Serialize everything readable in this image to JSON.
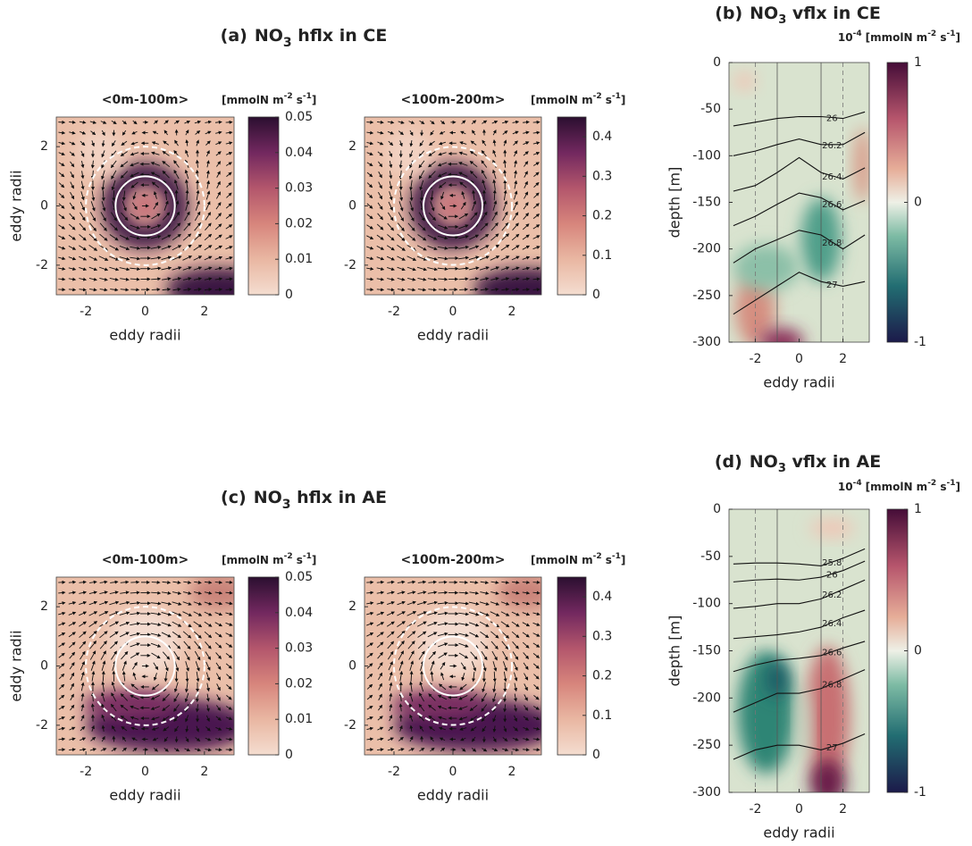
{
  "headings": [
    {
      "label": "(a)",
      "title": [
        "NO",
        "3",
        " hflx  in CE"
      ]
    },
    {
      "label": "(c)",
      "title": [
        "NO",
        "3",
        " hflx  in AE"
      ]
    }
  ],
  "chart_data": [
    {
      "type": "quiver-map",
      "subtitle": "<0m-100m>",
      "xlabel": "eddy radii",
      "ylabel": "eddy radii",
      "xlim": [
        -3,
        3
      ],
      "ylim": [
        -3,
        3
      ],
      "xticks": [
        -2,
        0,
        2
      ],
      "yticks": [
        -2,
        0,
        2
      ],
      "circles": [
        {
          "r": 1,
          "style": "solid"
        },
        {
          "r": 2,
          "style": "dashed"
        }
      ],
      "colorbar": {
        "lim": [
          0,
          0.05
        ],
        "ticks": [
          0,
          0.01,
          0.02,
          0.03,
          0.04,
          0.05
        ],
        "units": [
          "[mmolN m",
          "-2",
          " s",
          "-1",
          "]"
        ]
      }
    },
    {
      "type": "quiver-map",
      "subtitle": "<100m-200m>",
      "xlabel": "eddy radii",
      "xlim": [
        -3,
        3
      ],
      "ylim": [
        -3,
        3
      ],
      "xticks": [
        -2,
        0,
        2
      ],
      "yticks": [
        -2,
        0,
        2
      ],
      "circles": [
        {
          "r": 1,
          "style": "solid"
        },
        {
          "r": 2,
          "style": "dashed"
        }
      ],
      "colorbar": {
        "lim": [
          0,
          0.45
        ],
        "ticks": [
          0,
          0.1,
          0.2,
          0.3,
          0.4
        ],
        "units": [
          "[mmolN m",
          "-2",
          " s",
          "-1",
          "]"
        ]
      }
    },
    {
      "type": "section",
      "label": "(b)",
      "title": [
        "NO",
        "3",
        " vflx  in CE"
      ],
      "xlabel": "eddy radii",
      "ylabel": "depth [m]",
      "xlim": [
        -3.2,
        3.2
      ],
      "ylim": [
        -300,
        0
      ],
      "xticks": [
        -2,
        0,
        2
      ],
      "yticks": [
        0,
        -50,
        -100,
        -150,
        -200,
        -250,
        -300
      ],
      "vlines": [
        {
          "x": -2,
          "style": "dashed"
        },
        {
          "x": -1,
          "style": "solid"
        },
        {
          "x": 1,
          "style": "solid"
        },
        {
          "x": 2,
          "style": "dashed"
        }
      ],
      "contour_x": [
        -3,
        -2,
        -1,
        0,
        1,
        2,
        3
      ],
      "contours": [
        {
          "level": 26,
          "depths": [
            -68,
            -64,
            -60,
            -58,
            -58,
            -60,
            -53
          ]
        },
        {
          "level": 26.2,
          "depths": [
            -100,
            -95,
            -88,
            -82,
            -88,
            -88,
            -75
          ]
        },
        {
          "level": 26.4,
          "depths": [
            -138,
            -132,
            -118,
            -102,
            -118,
            -125,
            -113
          ]
        },
        {
          "level": 26.6,
          "depths": [
            -175,
            -165,
            -152,
            -140,
            -145,
            -158,
            -148
          ]
        },
        {
          "level": 26.8,
          "depths": [
            -215,
            -200,
            -190,
            -180,
            -185,
            -200,
            -185
          ]
        },
        {
          "level": 27,
          "depths": [
            -270,
            -255,
            -240,
            -225,
            -235,
            -240,
            -235
          ]
        }
      ],
      "colorbar": {
        "lim": [
          -1,
          1
        ],
        "ticks": [
          -1,
          0,
          1
        ],
        "scale": [
          "10",
          "-4"
        ],
        "units": [
          "[mmolN m",
          "-2",
          " s",
          "-1",
          "]"
        ]
      }
    },
    {
      "type": "quiver-map",
      "subtitle": "<0m-100m>",
      "xlabel": "eddy radii",
      "ylabel": "eddy radii",
      "xlim": [
        -3,
        3
      ],
      "ylim": [
        -3,
        3
      ],
      "xticks": [
        -2,
        0,
        2
      ],
      "yticks": [
        -2,
        0,
        2
      ],
      "circles": [
        {
          "r": 1,
          "style": "solid"
        },
        {
          "r": 2,
          "style": "dashed"
        }
      ],
      "colorbar": {
        "lim": [
          0,
          0.05
        ],
        "ticks": [
          0,
          0.01,
          0.02,
          0.03,
          0.04,
          0.05
        ],
        "units": [
          "[mmolN m",
          "-2",
          " s",
          "-1",
          "]"
        ]
      }
    },
    {
      "type": "quiver-map",
      "subtitle": "<100m-200m>",
      "xlabel": "eddy radii",
      "xlim": [
        -3,
        3
      ],
      "ylim": [
        -3,
        3
      ],
      "xticks": [
        -2,
        0,
        2
      ],
      "yticks": [
        -2,
        0,
        2
      ],
      "circles": [
        {
          "r": 1,
          "style": "solid"
        },
        {
          "r": 2,
          "style": "dashed"
        }
      ],
      "colorbar": {
        "lim": [
          0,
          0.45
        ],
        "ticks": [
          0,
          0.1,
          0.2,
          0.3,
          0.4
        ],
        "units": [
          "[mmolN m",
          "-2",
          " s",
          "-1",
          "]"
        ]
      }
    },
    {
      "type": "section",
      "label": "(d)",
      "title": [
        "NO",
        "3",
        " vflx  in AE"
      ],
      "xlabel": "eddy radii",
      "ylabel": "depth [m]",
      "xlim": [
        -3.2,
        3.2
      ],
      "ylim": [
        -300,
        0
      ],
      "xticks": [
        -2,
        0,
        2
      ],
      "yticks": [
        0,
        -50,
        -100,
        -150,
        -200,
        -250,
        -300
      ],
      "vlines": [
        {
          "x": -2,
          "style": "dashed"
        },
        {
          "x": -1,
          "style": "solid"
        },
        {
          "x": 1,
          "style": "solid"
        },
        {
          "x": 2,
          "style": "dashed"
        }
      ],
      "contour_x": [
        -3,
        -2,
        -1,
        0,
        1,
        2,
        3
      ],
      "contours": [
        {
          "level": 25.8,
          "depths": [
            -58,
            -57,
            -57,
            -58,
            -60,
            -52,
            -42
          ]
        },
        {
          "level": 26,
          "depths": [
            -77,
            -75,
            -74,
            -75,
            -72,
            -65,
            -55
          ]
        },
        {
          "level": 26.2,
          "depths": [
            -105,
            -103,
            -100,
            -100,
            -95,
            -85,
            -75
          ]
        },
        {
          "level": 26.4,
          "depths": [
            -137,
            -135,
            -133,
            -130,
            -125,
            -115,
            -107
          ]
        },
        {
          "level": 26.6,
          "depths": [
            -172,
            -165,
            -160,
            -158,
            -155,
            -147,
            -140
          ]
        },
        {
          "level": 26.8,
          "depths": [
            -215,
            -205,
            -195,
            -195,
            -190,
            -180,
            -170
          ]
        },
        {
          "level": 27,
          "depths": [
            -265,
            -255,
            -250,
            -250,
            -255,
            -248,
            -238
          ]
        }
      ],
      "colorbar": {
        "lim": [
          -1,
          1
        ],
        "ticks": [
          -1,
          0,
          1
        ],
        "scale": [
          "10",
          "-4"
        ],
        "units": [
          "[mmolN m",
          "-2",
          " s",
          "-1",
          "]"
        ]
      }
    }
  ]
}
